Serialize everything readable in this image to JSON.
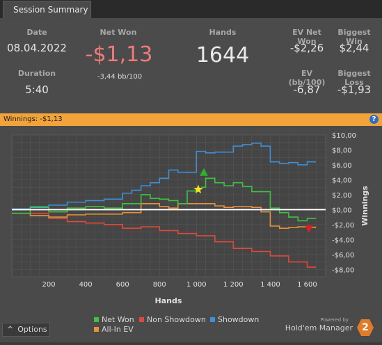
{
  "tab": {
    "title": "Session Summary"
  },
  "summary": {
    "date_label": "Date",
    "date": "08.04.2022",
    "duration_label": "Duration",
    "duration": "5:40",
    "net_won_label": "Net Won",
    "net_won": "-$1,13",
    "bb100": "-3,44 bb/100",
    "hands_label": "Hands",
    "hands": "1644",
    "ev_net_won_label": "EV Net Won",
    "ev_net_won": "-$2,26",
    "biggest_win_label": "Biggest Win",
    "biggest_win": "$2,44",
    "ev_bb100_label": "EV (bb/100)",
    "ev_bb100": "-6,87",
    "biggest_loss_label": "Biggest Loss",
    "biggest_loss": "-$1,93"
  },
  "winnings_bar": {
    "text": "Winnings:  -$1,13",
    "help": "?"
  },
  "options": {
    "label": "Options",
    "caret": "^"
  },
  "brand": {
    "powered_by": "Powered by",
    "name": "Hold'em Manager",
    "version": "2"
  },
  "chart_data": {
    "type": "line",
    "xlabel": "Hands",
    "ylabel": "Winnings",
    "xlim": [
      0,
      1700
    ],
    "ylim": [
      -9,
      10
    ],
    "x_ticks": [
      200,
      400,
      600,
      800,
      1000,
      1200,
      1400,
      1600
    ],
    "x_tick_labels": [
      "200",
      "400",
      "600",
      "800",
      "1 000",
      "1 200",
      "1 400",
      "1 600"
    ],
    "y_ticks": [
      10,
      8,
      6,
      4,
      2,
      0,
      -2,
      -4,
      -6,
      -8
    ],
    "y_tick_labels": [
      "$10,00",
      "$8,00",
      "$6,00",
      "$4,00",
      "$2,00",
      "$0,00",
      "-$2,00",
      "-$4,00",
      "-$6,00",
      "-$8,00"
    ],
    "grid": true,
    "legend_position": "bottom",
    "colors": {
      "net_won": "#3fc23f",
      "non_showdown": "#e0483c",
      "showdown": "#3d8fd6",
      "all_in_ev": "#e8913a",
      "zero_line": "#ffffff",
      "best_marker": "#2fb02f",
      "worst_marker": "#e02020",
      "star": "#f5e51e"
    },
    "series": [
      {
        "name": "Net Won",
        "x": [
          0,
          100,
          200,
          300,
          400,
          500,
          600,
          650,
          700,
          750,
          800,
          850,
          900,
          950,
          1000,
          1030,
          1050,
          1100,
          1150,
          1200,
          1250,
          1300,
          1350,
          1400,
          1450,
          1500,
          1550,
          1600,
          1644
        ],
        "y": [
          -0.5,
          0.3,
          -0.3,
          0.2,
          0.4,
          0.2,
          0.8,
          0.8,
          2.0,
          1.5,
          1.4,
          1.2,
          0.8,
          2.5,
          2.8,
          3.0,
          4.2,
          3.6,
          3.2,
          3.6,
          3.1,
          2.4,
          2.4,
          0.2,
          -0.4,
          -1.0,
          -1.5,
          -1.2,
          -1.13
        ]
      },
      {
        "name": "Non Showdown",
        "x": [
          0,
          100,
          200,
          300,
          400,
          500,
          600,
          700,
          800,
          900,
          1000,
          1100,
          1200,
          1300,
          1400,
          1500,
          1600,
          1644
        ],
        "y": [
          0,
          -0.5,
          -1.2,
          -1.6,
          -1.8,
          -2.0,
          -2.5,
          -2.3,
          -2.8,
          -3.2,
          -3.5,
          -4.3,
          -5.2,
          -5.6,
          -6.2,
          -7.0,
          -7.7,
          -7.6
        ]
      },
      {
        "name": "Showdown",
        "x": [
          0,
          100,
          200,
          300,
          400,
          500,
          600,
          650,
          700,
          750,
          800,
          850,
          900,
          1000,
          1050,
          1100,
          1200,
          1250,
          1300,
          1350,
          1400,
          1450,
          1500,
          1550,
          1600,
          1644
        ],
        "y": [
          0.1,
          0.4,
          0.6,
          1.0,
          1.2,
          1.4,
          2.2,
          2.6,
          3.2,
          3.6,
          4.2,
          5.3,
          5.0,
          7.8,
          7.6,
          7.7,
          8.5,
          8.7,
          8.9,
          8.5,
          6.4,
          6.2,
          6.3,
          6.0,
          6.4,
          6.3
        ]
      },
      {
        "name": "All-In EV",
        "x": [
          0,
          100,
          200,
          300,
          400,
          500,
          600,
          650,
          700,
          750,
          800,
          850,
          900,
          950,
          1000,
          1050,
          1100,
          1150,
          1200,
          1250,
          1300,
          1350,
          1400,
          1450,
          1500,
          1550,
          1600,
          1644
        ],
        "y": [
          -0.5,
          -0.8,
          -1.0,
          -0.7,
          -0.6,
          -0.6,
          -0.4,
          -0.4,
          0.8,
          0.8,
          0.4,
          0.2,
          0.8,
          0.8,
          0.8,
          0.8,
          0.5,
          0.3,
          0.4,
          0.4,
          0.3,
          -0.3,
          -2.2,
          -2.5,
          -2.4,
          -2.3,
          -2.4,
          -2.26
        ]
      }
    ],
    "markers": [
      {
        "type": "best",
        "x": 1040,
        "y": 4.9
      },
      {
        "type": "worst",
        "x": 1610,
        "y": -2.5
      },
      {
        "type": "star",
        "x": 1010,
        "y": 2.7
      }
    ]
  }
}
